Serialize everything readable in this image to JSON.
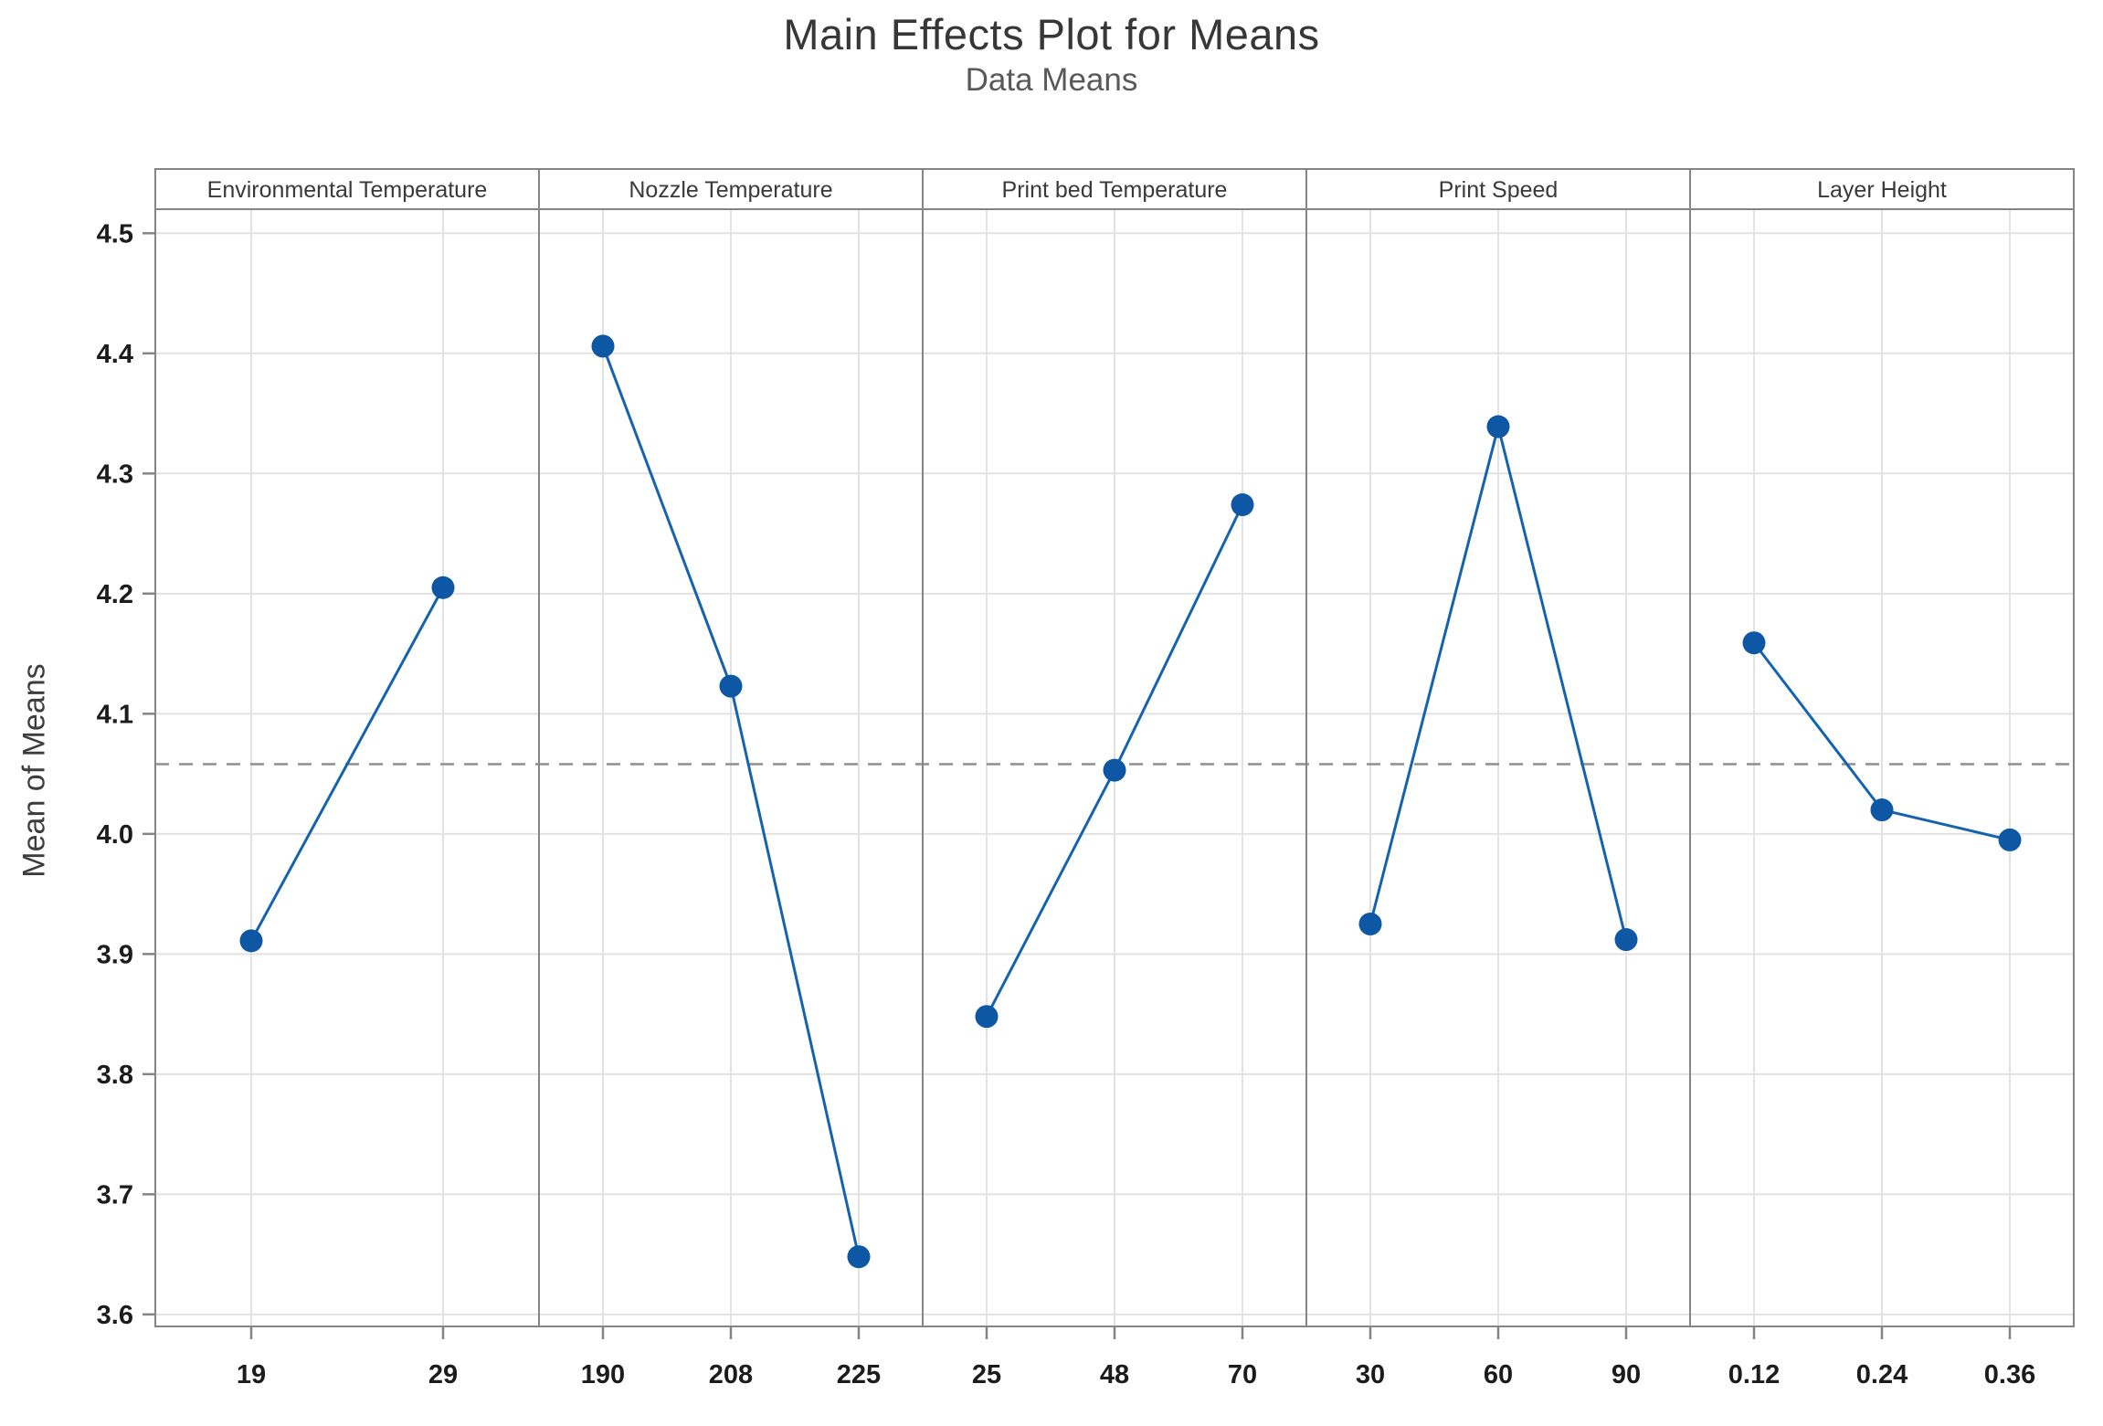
{
  "chart_data": {
    "type": "line",
    "title": "Main Effects Plot for Means",
    "subtitle": "Data Means",
    "ylabel": "Mean of Means",
    "ylim": [
      3.59,
      4.52
    ],
    "yticks": [
      3.6,
      3.7,
      3.8,
      3.9,
      4.0,
      4.1,
      4.2,
      4.3,
      4.4,
      4.5
    ],
    "grid": true,
    "legend": "none",
    "grand_mean": 4.058,
    "grand_mean_line_style": "dashed",
    "panels": [
      {
        "factor": "Environmental Temperature",
        "categories": [
          "19",
          "29"
        ],
        "values": [
          3.911,
          4.205
        ]
      },
      {
        "factor": "Nozzle Temperature",
        "categories": [
          "190",
          "208",
          "225"
        ],
        "values": [
          4.406,
          4.123,
          3.648
        ]
      },
      {
        "factor": "Print bed Temperature",
        "categories": [
          "25",
          "48",
          "70"
        ],
        "values": [
          3.848,
          4.053,
          4.274
        ]
      },
      {
        "factor": "Print Speed",
        "categories": [
          "30",
          "60",
          "90"
        ],
        "values": [
          3.925,
          4.339,
          3.912
        ]
      },
      {
        "factor": "Layer Height",
        "categories": [
          "0.12",
          "0.24",
          "0.36"
        ],
        "values": [
          4.159,
          4.02,
          3.995
        ]
      }
    ],
    "colors": {
      "series_line": "#1563ae",
      "marker": "#0d57a5",
      "gridline": "#e2e2e2",
      "panel_border": "#858585",
      "mean_line": "#8f8f8f",
      "tick_text": "#1c1c1c",
      "header_text": "#3a3a3a"
    }
  }
}
